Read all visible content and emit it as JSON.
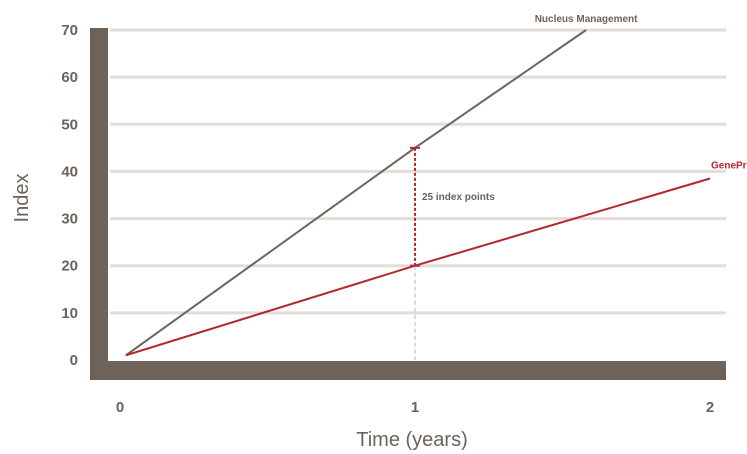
{
  "chart_data": {
    "type": "line",
    "xlabel": "Time (years)",
    "ylabel": "Index",
    "xlim": [
      0,
      2
    ],
    "ylim": [
      0,
      70
    ],
    "x_ticks": [
      0,
      1,
      2
    ],
    "y_ticks": [
      0,
      10,
      20,
      30,
      40,
      50,
      60,
      70
    ],
    "grid": true,
    "series": [
      {
        "name": "Nucleus Management",
        "color": "#6e6460",
        "x": [
          0.02,
          1,
          1.58
        ],
        "y": [
          1,
          45,
          70
        ]
      },
      {
        "name": "GeneProx",
        "color": "#b3282d",
        "x": [
          0.02,
          1,
          2
        ],
        "y": [
          1,
          20,
          38.5
        ]
      }
    ],
    "annotation": {
      "text": "25 index points",
      "x": 1,
      "y_from": 20,
      "y_to": 45
    }
  },
  "colors": {
    "axis": "#6e6359",
    "grid": "#e3ddd8",
    "label": "#6b625c",
    "guide": "#d9d9d9"
  }
}
